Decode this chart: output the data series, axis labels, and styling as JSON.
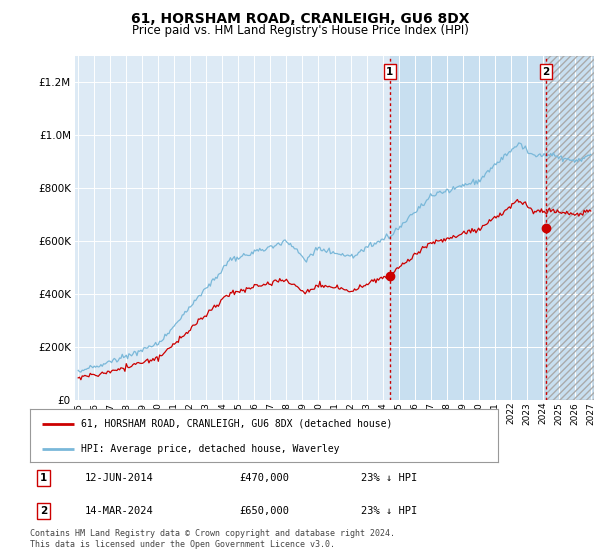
{
  "title": "61, HORSHAM ROAD, CRANLEIGH, GU6 8DX",
  "subtitle": "Price paid vs. HM Land Registry's House Price Index (HPI)",
  "hpi_label": "HPI: Average price, detached house, Waverley",
  "price_label": "61, HORSHAM ROAD, CRANLEIGH, GU6 8DX (detached house)",
  "annotation1_date": "12-JUN-2014",
  "annotation1_price": "£470,000",
  "annotation1_hpi": "23% ↓ HPI",
  "annotation2_date": "14-MAR-2024",
  "annotation2_price": "£650,000",
  "annotation2_hpi": "23% ↓ HPI",
  "footnote": "Contains HM Land Registry data © Crown copyright and database right 2024.\nThis data is licensed under the Open Government Licence v3.0.",
  "hpi_color": "#7ab8d9",
  "price_color": "#cc0000",
  "background_plot": "#ddeaf5",
  "background_highlight": "#c8dff0",
  "background_fig": "#ffffff",
  "vline_color": "#cc0000",
  "ylim": [
    0,
    1300000
  ],
  "yticks": [
    0,
    200000,
    400000,
    600000,
    800000,
    1000000,
    1200000
  ],
  "sale1_x": 2014.45,
  "sale1_y": 470000,
  "sale2_x": 2024.2,
  "sale2_y": 650000,
  "xmin": 1994.8,
  "xmax": 2027.2
}
